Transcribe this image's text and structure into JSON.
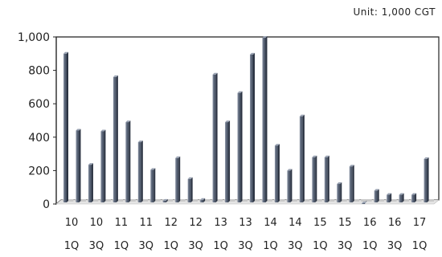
{
  "unit_label": "Unit: 1,000 CGT",
  "chart_data": {
    "type": "bar",
    "unit": "Unit: 1,000 CGT",
    "ylim": [
      0,
      1000
    ],
    "yticks": [
      "0",
      "200",
      "400",
      "600",
      "800",
      "1,000"
    ],
    "ytick_values": [
      0,
      200,
      400,
      600,
      800,
      1000
    ],
    "x_tick_labels": [
      {
        "year": "10",
        "quarter": "1Q"
      },
      {
        "year": "10",
        "quarter": "3Q"
      },
      {
        "year": "11",
        "quarter": "1Q"
      },
      {
        "year": "11",
        "quarter": "3Q"
      },
      {
        "year": "12",
        "quarter": "1Q"
      },
      {
        "year": "12",
        "quarter": "3Q"
      },
      {
        "year": "13",
        "quarter": "1Q"
      },
      {
        "year": "13",
        "quarter": "3Q"
      },
      {
        "year": "14",
        "quarter": "1Q"
      },
      {
        "year": "14",
        "quarter": "3Q"
      },
      {
        "year": "15",
        "quarter": "1Q"
      },
      {
        "year": "15",
        "quarter": "3Q"
      },
      {
        "year": "16",
        "quarter": "1Q"
      },
      {
        "year": "16",
        "quarter": "3Q"
      },
      {
        "year": "17",
        "quarter": "1Q"
      }
    ],
    "values": [
      900,
      440,
      235,
      435,
      760,
      490,
      370,
      205,
      20,
      275,
      150,
      25,
      775,
      490,
      665,
      895,
      995,
      350,
      200,
      525,
      280,
      280,
      120,
      225,
      5,
      80,
      55,
      55,
      55,
      270
    ],
    "grid": false,
    "legend": "none",
    "colors": {
      "bar": "#3f4a5c",
      "bar_highlight": "#8a94a6",
      "base": "#c9c9c9"
    }
  }
}
